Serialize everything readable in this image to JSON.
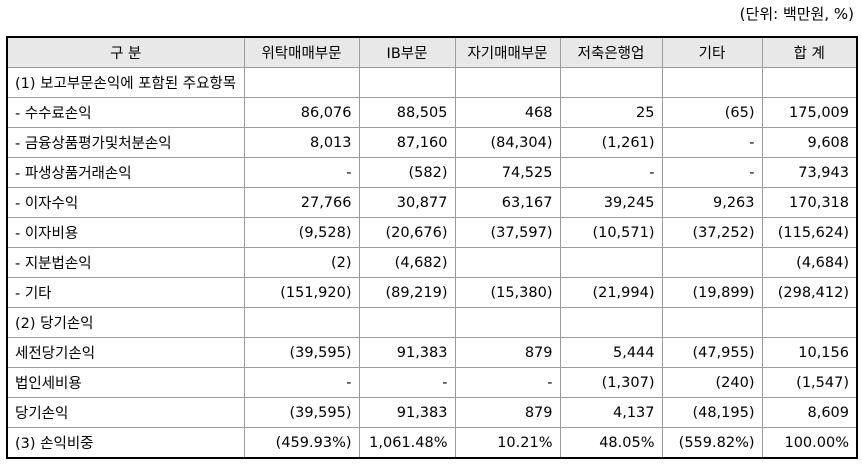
{
  "unit_label": "(단위: 백만원, %)",
  "colors": {
    "header_bg": "#e8e8e8",
    "grid_line": "#9c9c9c",
    "outer_border": "#000000",
    "text": "#000000"
  },
  "table": {
    "columns": [
      "구 분",
      "위탁매매부문",
      "IB부문",
      "자기매매부문",
      "저축은행업",
      "기타",
      "합 계"
    ],
    "rows": [
      {
        "label": "(1) 보고부문손익에 포함된 주요항목",
        "values": [
          "",
          "",
          "",
          "",
          "",
          ""
        ]
      },
      {
        "label": "- 수수료손익",
        "values": [
          "86,076",
          "88,505",
          "468",
          "25",
          "(65)",
          "175,009"
        ]
      },
      {
        "label": "- 금융상품평가및처분손익",
        "values": [
          "8,013",
          "87,160",
          "(84,304)",
          "(1,261)",
          "-",
          "9,608"
        ]
      },
      {
        "label": "- 파생상품거래손익",
        "values": [
          "-",
          "(582)",
          "74,525",
          "-",
          "-",
          "73,943"
        ]
      },
      {
        "label": "- 이자수익",
        "values": [
          "27,766",
          "30,877",
          "63,167",
          "39,245",
          "9,263",
          "170,318"
        ]
      },
      {
        "label": "- 이자비용",
        "values": [
          "(9,528)",
          "(20,676)",
          "(37,597)",
          "(10,571)",
          "(37,252)",
          "(115,624)"
        ]
      },
      {
        "label": "- 지분법손익",
        "values": [
          "(2)",
          "(4,682)",
          "",
          "",
          "",
          "(4,684)"
        ]
      },
      {
        "label": "- 기타",
        "values": [
          "(151,920)",
          "(89,219)",
          "(15,380)",
          "(21,994)",
          "(19,899)",
          "(298,412)"
        ]
      },
      {
        "label": "(2) 당기손익",
        "values": [
          "",
          "",
          "",
          "",
          "",
          ""
        ]
      },
      {
        "label": "세전당기손익",
        "values": [
          "(39,595)",
          "91,383",
          "879",
          "5,444",
          "(47,955)",
          "10,156"
        ]
      },
      {
        "label": "법인세비용",
        "values": [
          "-",
          "-",
          "-",
          "(1,307)",
          "(240)",
          "(1,547)"
        ]
      },
      {
        "label": "당기손익",
        "values": [
          "(39,595)",
          "91,383",
          "879",
          "4,137",
          "(48,195)",
          "8,609"
        ]
      },
      {
        "label": "(3) 손익비중",
        "values": [
          "(459.93%)",
          "1,061.48%",
          "10.21%",
          "48.05%",
          "(559.82%)",
          "100.00%"
        ]
      }
    ]
  }
}
